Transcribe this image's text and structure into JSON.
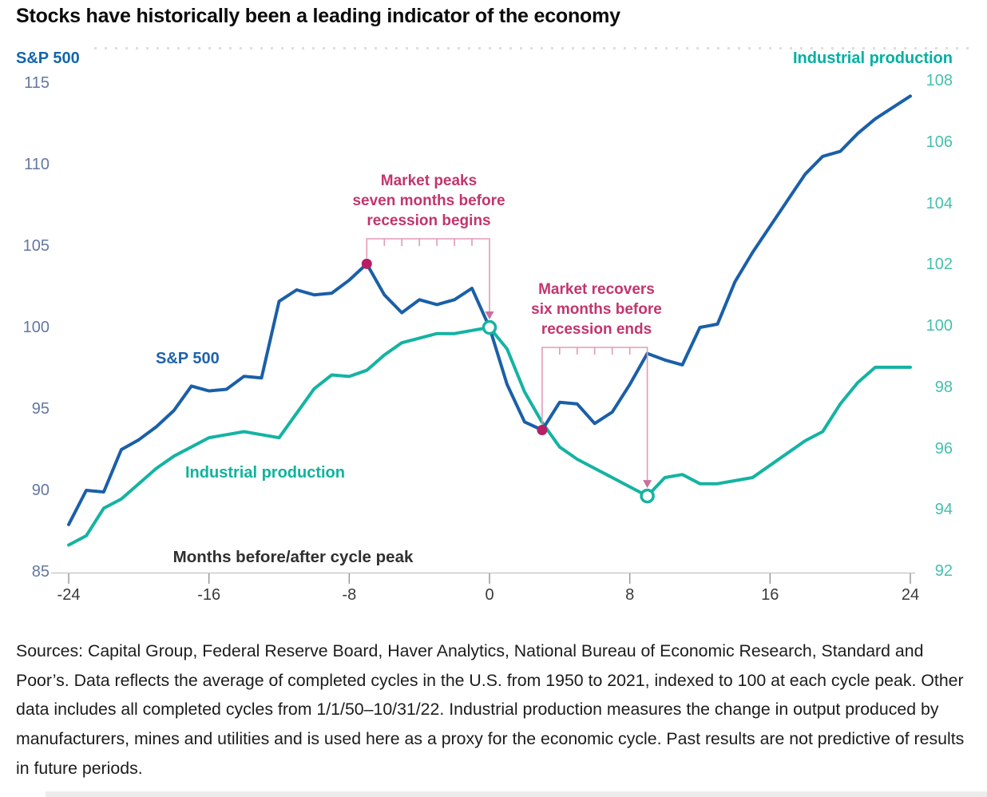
{
  "title": "Stocks have historically been a leading indicator of the economy",
  "left_axis": {
    "header": "S&P 500",
    "ticks": [
      115,
      110,
      105,
      100,
      95,
      90,
      85
    ],
    "min": 85,
    "max": 115,
    "header_color": "#1266ad",
    "tick_color": "#64789f"
  },
  "right_axis": {
    "header": "Industrial production",
    "ticks": [
      108,
      106,
      104,
      102,
      100,
      98,
      96,
      94,
      92
    ],
    "min": 92,
    "max": 108,
    "header_color": "#00b0a2",
    "tick_color": "#47bfae"
  },
  "x_axis": {
    "label": "Months before/after cycle peak",
    "ticks": [
      -24,
      -16,
      -8,
      0,
      8,
      16,
      24
    ],
    "min": -24,
    "max": 24
  },
  "series_labels": {
    "sp500": "S&P 500",
    "indprod": "Industrial production"
  },
  "annotations": [
    {
      "text": "Market peaks\nseven months before\nrecession begins",
      "from_month": -7,
      "to_month": 0,
      "dot": {
        "series": "S&P 500",
        "axis": "left",
        "month": -7,
        "value": 104.0
      },
      "arrow_target": {
        "series": "Industrial production",
        "axis": "right",
        "month": 0,
        "value": 100.0
      }
    },
    {
      "text": "Market recovers\nsix months before\nrecession ends",
      "from_month": 3,
      "to_month": 9,
      "dot": {
        "series": "S&P 500",
        "axis": "left",
        "month": 3,
        "value": 93.8
      },
      "arrow_target": {
        "series": "Industrial production",
        "axis": "right",
        "month": 9,
        "value": 94.5
      }
    }
  ],
  "source_text": "Sources: Capital Group, Federal Reserve Board, Haver Analytics, National Bureau of Economic Research, Standard and Poor’s. Data reflects the average of completed cycles in the U.S. from 1950 to 2021, indexed to 100 at each cycle peak. Other data includes all completed cycles from 1/1/50–10/31/22. Industrial production measures the change in output produced by manufacturers, mines and utilities and is used here as a proxy for the economic cycle. Past results are not predictive of results in future periods.",
  "colors": {
    "sp500_line": "#1a5fa8",
    "indprod_line": "#14b3a2",
    "annotation_text": "#c2356e",
    "annotation_dot": "#b81e64",
    "bracket_line": "#e39ab8",
    "arrowhead": "#cb6f9e",
    "axis_line": "#c9c9c9",
    "axis_tick": "#9b9b9b"
  },
  "chart_data": {
    "type": "line",
    "title": "Stocks have historically been a leading indicator of the economy",
    "xlabel": "Months before/after cycle peak",
    "x_range": [
      -24,
      24
    ],
    "left_ylim": [
      85,
      115
    ],
    "right_ylim": [
      92,
      108
    ],
    "grid": false,
    "x": [
      -24,
      -23,
      -22,
      -21,
      -20,
      -19,
      -18,
      -17,
      -16,
      -15,
      -14,
      -13,
      -12,
      -11,
      -10,
      -9,
      -8,
      -7,
      -6,
      -5,
      -4,
      -3,
      -2,
      -1,
      0,
      1,
      2,
      3,
      4,
      5,
      6,
      7,
      8,
      9,
      10,
      11,
      12,
      13,
      14,
      15,
      16,
      17,
      18,
      19,
      20,
      21,
      22,
      23,
      24
    ],
    "series": [
      {
        "name": "S&P 500",
        "axis": "left",
        "color": "#1a5fa8",
        "values": [
          88.0,
          90.1,
          90.0,
          92.6,
          93.2,
          94.0,
          95.0,
          96.5,
          96.2,
          96.3,
          97.1,
          97.0,
          101.7,
          102.4,
          102.1,
          102.2,
          103.0,
          104.0,
          102.1,
          101.0,
          101.8,
          101.5,
          101.8,
          102.5,
          100.1,
          96.6,
          94.3,
          93.8,
          95.5,
          95.4,
          94.2,
          94.9,
          96.6,
          98.5,
          98.1,
          97.8,
          100.1,
          100.3,
          102.9,
          104.7,
          106.3,
          107.9,
          109.5,
          110.6,
          110.9,
          112.0,
          112.9,
          113.6,
          114.3
        ]
      },
      {
        "name": "Industrial production",
        "axis": "right",
        "color": "#14b3a2",
        "values": [
          92.9,
          93.2,
          94.1,
          94.4,
          94.9,
          95.4,
          95.8,
          96.1,
          96.4,
          96.5,
          96.6,
          96.5,
          96.4,
          97.2,
          98.0,
          98.45,
          98.4,
          98.6,
          99.1,
          99.5,
          99.65,
          99.8,
          99.8,
          99.9,
          100.0,
          99.3,
          97.9,
          96.9,
          96.1,
          95.7,
          95.4,
          95.1,
          94.8,
          94.5,
          95.1,
          95.2,
          94.9,
          94.9,
          95.0,
          95.1,
          95.5,
          95.9,
          96.3,
          96.6,
          97.5,
          98.2,
          98.7,
          98.7,
          98.7
        ]
      }
    ]
  }
}
